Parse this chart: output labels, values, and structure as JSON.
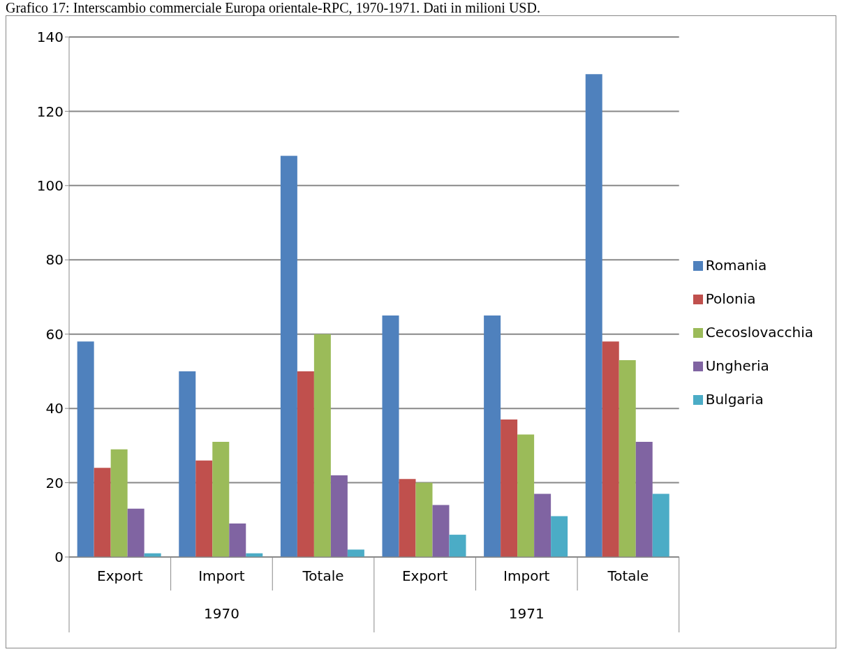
{
  "chart_data": {
    "type": "bar",
    "title": "Grafico 17: Interscambio commerciale Europa orientale-RPC, 1970-1971. Dati in milioni USD.",
    "categories": [
      "Export",
      "Import",
      "Totale",
      "Export",
      "Import",
      "Totale"
    ],
    "series": [
      {
        "name": "Romania",
        "color": "#4f81bd",
        "values": [
          58,
          50,
          108,
          65,
          65,
          130
        ]
      },
      {
        "name": "Polonia",
        "color": "#c0504d",
        "values": [
          24,
          26,
          50,
          21,
          37,
          58
        ]
      },
      {
        "name": "Cecoslovacchia",
        "color": "#9bbb59",
        "values": [
          29,
          31,
          60,
          20,
          33,
          53
        ]
      },
      {
        "name": "Ungheria",
        "color": "#8064a2",
        "values": [
          13,
          9,
          22,
          14,
          17,
          31
        ]
      },
      {
        "name": "Bulgaria",
        "color": "#4bacc6",
        "values": [
          1,
          1,
          2,
          6,
          11,
          17
        ]
      }
    ],
    "annotations": [
      "1970",
      "1971"
    ],
    "ylim": [
      0,
      140
    ],
    "yticks": [
      0,
      20,
      40,
      60,
      80,
      100,
      120,
      140
    ],
    "grid": "y",
    "legend": "right"
  }
}
